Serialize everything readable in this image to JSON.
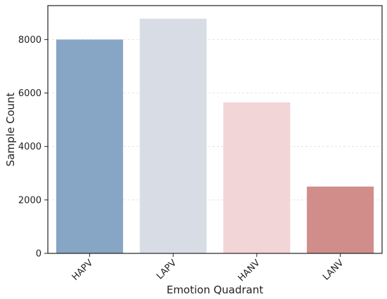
{
  "chart_data": {
    "type": "bar",
    "title": "",
    "xlabel": "Emotion Quadrant",
    "ylabel": "Sample Count",
    "categories": [
      "HAPV",
      "LAPV",
      "HANV",
      "LANV"
    ],
    "values": [
      8000,
      8780,
      5650,
      2500
    ],
    "colors": [
      "#87a5c4",
      "#d8dde5",
      "#f2d5d7",
      "#d18d89"
    ],
    "ylim": [
      0,
      9270
    ],
    "yticks": [
      0,
      2000,
      4000,
      6000,
      8000
    ],
    "grid": true,
    "legend": "none"
  }
}
